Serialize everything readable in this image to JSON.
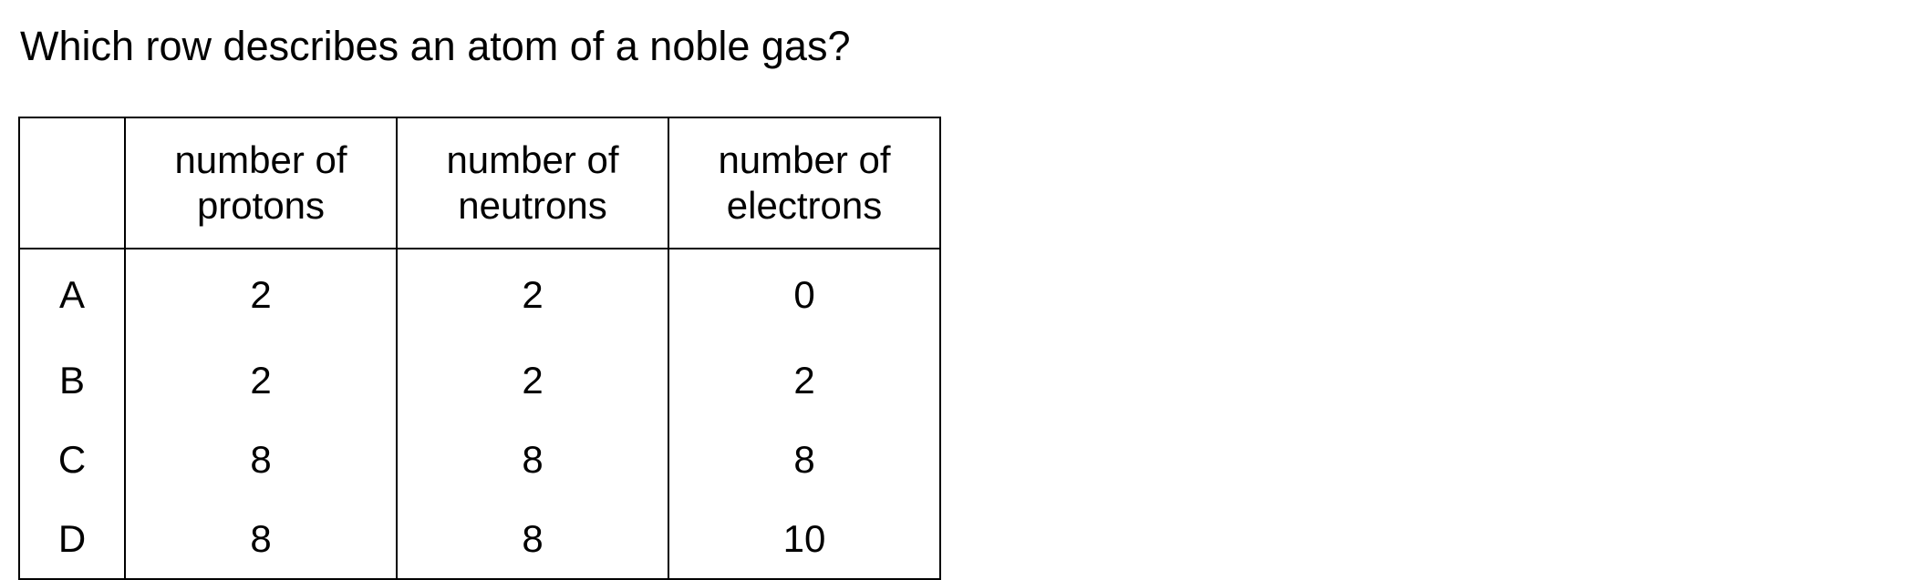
{
  "question": "Which row describes an atom of a noble gas?",
  "table": {
    "headers": [
      {
        "line1": "number of",
        "line2": "protons"
      },
      {
        "line1": "number of",
        "line2": "neutrons"
      },
      {
        "line1": "number of",
        "line2": "electrons"
      }
    ],
    "rows": [
      {
        "key": "A",
        "protons": "2",
        "neutrons": "2",
        "electrons": "0"
      },
      {
        "key": "B",
        "protons": "2",
        "neutrons": "2",
        "electrons": "2"
      },
      {
        "key": "C",
        "protons": "8",
        "neutrons": "8",
        "electrons": "8"
      },
      {
        "key": "D",
        "protons": "8",
        "neutrons": "8",
        "electrons": "10"
      }
    ]
  }
}
